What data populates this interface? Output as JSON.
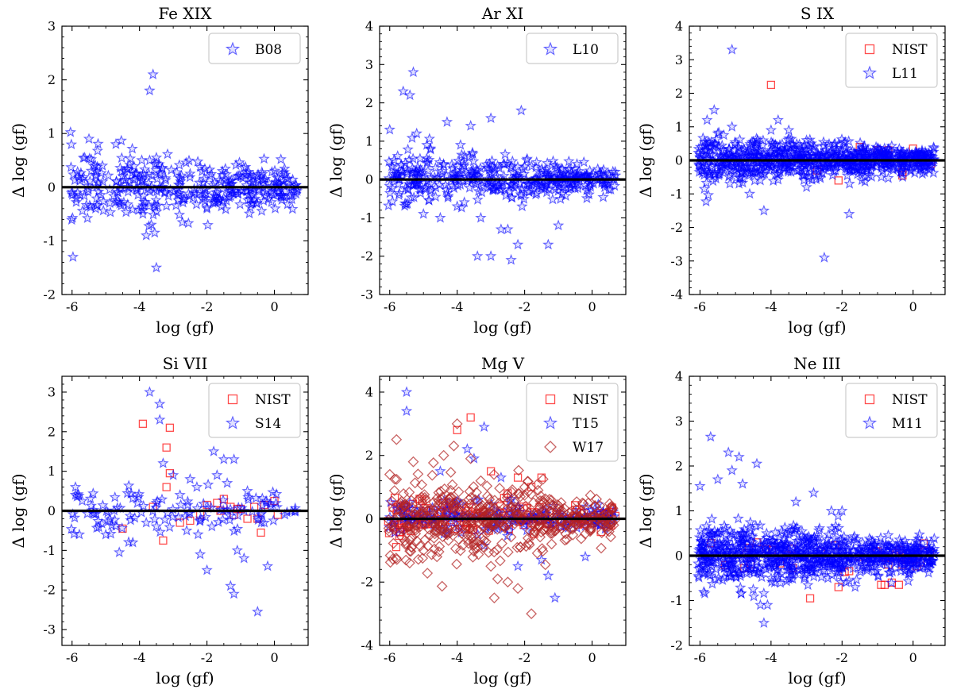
{
  "colors": {
    "star": "#0000ff",
    "square": "#ff0000",
    "diamond": "#b22222",
    "zero_line": "#000000"
  },
  "chart_data": [
    {
      "type": "scatter",
      "title": "Fe XIX",
      "xlabel": "log (gf)",
      "ylabel": "Δ log (gf)",
      "xlim": [
        -6.3,
        1.0
      ],
      "ylim": [
        -2,
        3
      ],
      "xticks": [
        "-6",
        "-4",
        "-2",
        "0"
      ],
      "yticks": [
        "-2",
        "-1",
        "0",
        "1",
        "2",
        "3"
      ],
      "legend_position": "top-right",
      "series": [
        {
          "name": "B08",
          "marker": "star",
          "color": "#0000ff",
          "density": 360,
          "x": [
            -3.6,
            -3.7,
            -5.5,
            -4.7,
            -5.1,
            -4.3,
            -5.3,
            -3.5,
            -5.7,
            -3.8,
            -3.9,
            -3.65,
            -3.55,
            -3.5,
            -3.7,
            -2.5,
            -3.2,
            -2.0,
            -1.5,
            -1.0
          ],
          "y": [
            2.1,
            1.8,
            0.9,
            0.8,
            0.4,
            0.1,
            -0.4,
            -1.5,
            0.15,
            -0.9,
            -0.5,
            -0.7,
            -0.85,
            0.55,
            0.5,
            0.25,
            -0.35,
            -0.4,
            -0.2,
            0.2
          ]
        }
      ]
    },
    {
      "type": "scatter",
      "title": "Ar XI",
      "xlabel": "log (gf)",
      "ylabel": "Δ log (gf)",
      "xlim": [
        -6.3,
        1.0
      ],
      "ylim": [
        -3,
        4
      ],
      "xticks": [
        "-6",
        "-4",
        "-2",
        "0"
      ],
      "yticks": [
        "-3",
        "-2",
        "-1",
        "0",
        "1",
        "2",
        "3",
        "4"
      ],
      "legend_position": "top-right",
      "series": [
        {
          "name": "L10",
          "marker": "star",
          "color": "#0000ff",
          "density": 420,
          "x": [
            -5.3,
            -5.6,
            -5.4,
            -4.3,
            -3.6,
            -3.0,
            -2.1,
            -6.0,
            -5.2,
            -4.9,
            -3.4,
            -2.7,
            -2.2,
            -2.4,
            -1.3,
            -1.0,
            -3.0,
            -2.5,
            -4.5,
            -5.0,
            -4.0,
            -3.3,
            -3.9
          ],
          "y": [
            2.8,
            2.3,
            2.2,
            1.5,
            1.4,
            1.6,
            1.8,
            1.3,
            1.2,
            0.9,
            -2.0,
            -1.3,
            -1.7,
            -2.1,
            -1.7,
            -1.2,
            -2.0,
            -1.3,
            -1.0,
            -0.9,
            -0.7,
            -1.0,
            0.9
          ]
        }
      ]
    },
    {
      "type": "scatter",
      "title": "S IX",
      "xlabel": "log (gf)",
      "ylabel": "Δ log (gf)",
      "xlim": [
        -6.3,
        0.9
      ],
      "ylim": [
        -4,
        4
      ],
      "xticks": [
        "-6",
        "-4",
        "-2",
        "0"
      ],
      "yticks": [
        "-4",
        "-3",
        "-2",
        "-1",
        "0",
        "1",
        "2",
        "3",
        "4"
      ],
      "legend_position": "top-right",
      "series": [
        {
          "name": "NIST",
          "marker": "square",
          "color": "#ff0000",
          "density": 0,
          "x": [
            -4.0,
            -2.1,
            -1.5,
            -1.0,
            -0.7,
            -0.3,
            -0.3,
            0.0,
            0.2,
            0.5,
            -1.2,
            -2.7,
            -1.8
          ],
          "y": [
            2.25,
            -0.6,
            0.4,
            0.3,
            0.3,
            -0.35,
            -0.45,
            0.35,
            -0.05,
            -0.1,
            -0.1,
            -0.3,
            0.0
          ]
        },
        {
          "name": "L11",
          "marker": "star",
          "color": "#0000ff",
          "density": 800,
          "x": [
            -5.1,
            -2.5,
            -5.6,
            -5.1,
            -4.6,
            -4.2,
            -3.8,
            -4.0,
            -1.8,
            -4.9,
            -4.3,
            -3.5,
            -3.0,
            -2.2,
            -5.8,
            -5.5,
            -3.0
          ],
          "y": [
            3.3,
            -2.9,
            1.5,
            1.0,
            -1.0,
            -1.5,
            1.2,
            0.9,
            -1.6,
            -0.7,
            -0.6,
            0.9,
            0.6,
            0.5,
            1.2,
            0.8,
            -0.8
          ]
        }
      ]
    },
    {
      "type": "scatter",
      "title": "Si VII",
      "xlabel": "log (gf)",
      "ylabel": "Δ log (gf)",
      "xlim": [
        -6.3,
        1.0
      ],
      "ylim": [
        -3.4,
        3.4
      ],
      "xticks": [
        "-6",
        "-4",
        "-2",
        "0"
      ],
      "yticks": [
        "-3",
        "-2",
        "-1",
        "0",
        "1",
        "2",
        "3"
      ],
      "legend_position": "top-right",
      "series": [
        {
          "name": "NIST",
          "marker": "square",
          "color": "#ff0000",
          "density": 0,
          "x": [
            -3.9,
            -3.1,
            -3.2,
            -3.1,
            -3.2,
            -4.5,
            -3.3,
            -2.8,
            -2.5,
            -2.0,
            -1.7,
            -1.5,
            -1.3,
            -1.2,
            -1.0,
            -0.8,
            -0.6,
            -0.4,
            -0.3,
            0.0,
            0.1,
            -3.6,
            -2.2,
            -1.6,
            -1.1,
            -0.5
          ],
          "y": [
            2.2,
            2.1,
            1.6,
            0.95,
            0.6,
            -0.45,
            -0.75,
            -0.3,
            -0.25,
            0.15,
            0.2,
            0.3,
            0.1,
            -0.1,
            0.05,
            -0.2,
            0.1,
            -0.55,
            0.15,
            0.25,
            -0.1,
            0.1,
            -0.1,
            0.0,
            0.05,
            -0.2
          ]
        },
        {
          "name": "S14",
          "marker": "star",
          "color": "#0000ff",
          "density": 120,
          "x": [
            -5.9,
            -3.7,
            -3.4,
            -3.4,
            -3.3,
            -3.0,
            -2.5,
            -1.8,
            -1.5,
            -1.2,
            -1.3,
            -1.2,
            -0.9,
            -0.5,
            -4.6,
            -5.0,
            -4.2,
            -3.8,
            -2.2,
            -2.0,
            -1.1,
            -0.2,
            -2.8,
            -2.3,
            -1.7,
            -1.4,
            -0.8,
            -0.3,
            -3.5,
            -2.6
          ],
          "y": [
            0.6,
            3.0,
            2.7,
            2.3,
            1.2,
            0.9,
            0.8,
            1.5,
            1.3,
            1.3,
            -1.9,
            -2.1,
            -1.2,
            -2.55,
            -1.05,
            -0.6,
            -0.8,
            -0.3,
            -1.1,
            -1.5,
            -1.0,
            -1.4,
            0.4,
            0.6,
            0.9,
            0.7,
            0.5,
            -0.3,
            0.2,
            -0.5
          ]
        }
      ]
    },
    {
      "type": "scatter",
      "title": "Mg V",
      "xlabel": "log (gf)",
      "ylabel": "Δ log (gf)",
      "xlim": [
        -6.3,
        1.0
      ],
      "ylim": [
        -4,
        4.5
      ],
      "xticks": [
        "-6",
        "-4",
        "-2",
        "0"
      ],
      "yticks": [
        "-4",
        "-2",
        "0",
        "2",
        "4"
      ],
      "legend_position": "top-right",
      "series": [
        {
          "name": "NIST",
          "marker": "square",
          "color": "#ff0000",
          "density": 150,
          "x": [
            -3.6,
            -4.0,
            -2.2,
            -1.5,
            -1.8,
            -3.0,
            -2.5
          ],
          "y": [
            3.2,
            2.8,
            1.3,
            1.3,
            1.0,
            1.5,
            0.8
          ]
        },
        {
          "name": "T15",
          "marker": "star",
          "color": "#0000ff",
          "density": 180,
          "x": [
            -5.5,
            -5.5,
            -3.2,
            -3.7,
            -3.5,
            -2.2,
            -1.5,
            -1.1,
            -0.2,
            -1.3,
            -2.7,
            -4.5
          ],
          "y": [
            4.0,
            3.4,
            2.9,
            2.2,
            1.9,
            -1.5,
            -1.3,
            -2.5,
            -1.2,
            -1.8,
            1.3,
            1.5
          ]
        },
        {
          "name": "W17",
          "marker": "diamond",
          "color": "#b22222",
          "density": 520,
          "x": [
            -5.8,
            -4.0,
            -4.1,
            -3.6,
            -1.8,
            -2.9,
            -2.8,
            -4.6,
            -5.0,
            -5.5,
            -3.0,
            -2.5,
            -2.2,
            -6.0,
            -5.3,
            -4.4,
            -3.3,
            -2.0,
            -1.6,
            -1.2
          ],
          "y": [
            2.5,
            3.0,
            2.3,
            1.9,
            -3.0,
            -2.5,
            -1.9,
            -1.2,
            -1.0,
            -0.8,
            -1.5,
            -2.0,
            -2.2,
            1.4,
            1.8,
            2.0,
            1.2,
            1.0,
            0.9,
            -0.8
          ]
        }
      ]
    },
    {
      "type": "scatter",
      "title": "Ne III",
      "xlabel": "log (gf)",
      "ylabel": "Δ log (gf)",
      "xlim": [
        -6.3,
        0.9
      ],
      "ylim": [
        -2,
        4
      ],
      "xticks": [
        "-6",
        "-4",
        "-2",
        "0"
      ],
      "yticks": [
        "-2",
        "-1",
        "0",
        "1",
        "2",
        "3",
        "4"
      ],
      "legend_position": "top-right",
      "series": [
        {
          "name": "NIST",
          "marker": "square",
          "color": "#ff0000",
          "density": 30,
          "x": [
            -2.9,
            -2.1,
            -0.9,
            -0.8,
            -0.6,
            -0.4,
            -0.3,
            0.2,
            -0.5,
            -0.2,
            -1.0,
            -0.7
          ],
          "y": [
            -0.95,
            -0.7,
            -0.65,
            -0.65,
            -0.6,
            -0.65,
            -0.2,
            -0.15,
            0.0,
            -0.1,
            0.1,
            -0.2
          ]
        },
        {
          "name": "M11",
          "marker": "star",
          "color": "#0000ff",
          "density": 850,
          "x": [
            -5.7,
            -5.2,
            -4.9,
            -4.4,
            -6.0,
            -5.5,
            -4.5,
            -4.3,
            -4.2,
            -4.0,
            -3.9,
            -4.1,
            -2.8,
            -2.0,
            -2.3,
            -3.3,
            -5.1,
            -4.8
          ],
          "y": [
            2.65,
            2.3,
            2.2,
            2.05,
            1.55,
            1.7,
            -0.75,
            -1.1,
            -1.5,
            -0.5,
            -0.6,
            -1.1,
            1.4,
            1.0,
            1.0,
            1.2,
            1.9,
            1.6
          ]
        }
      ]
    }
  ]
}
